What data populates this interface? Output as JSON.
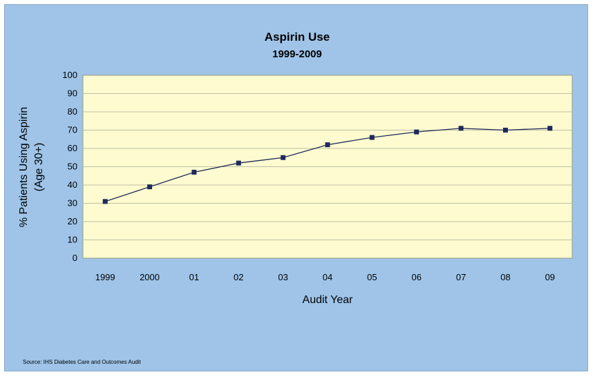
{
  "chart_data": {
    "type": "line",
    "title": "Aspirin Use",
    "subtitle": "1999-2009",
    "xlabel": "Audit Year",
    "ylabel_line1": "% Patients Using Aspirin",
    "ylabel_line2": "(Age 30+)",
    "categories": [
      "1999",
      "2000",
      "01",
      "02",
      "03",
      "04",
      "05",
      "06",
      "07",
      "08",
      "09"
    ],
    "values": [
      31,
      39,
      47,
      52,
      55,
      62,
      66,
      69,
      71,
      70,
      71
    ],
    "ylim": [
      0,
      100
    ],
    "yticks": [
      0,
      10,
      20,
      30,
      40,
      50,
      60,
      70,
      80,
      90,
      100
    ],
    "grid": true,
    "legend": "none",
    "colors": {
      "background": "#9fc4e8",
      "plot_area": "#fdfbcf",
      "line": "#1f2a5a",
      "marker": "#1f2a5a",
      "grid": "#bfbfa5"
    },
    "source": "Source: IHS Diabetes Care and Outcomes Audit"
  }
}
